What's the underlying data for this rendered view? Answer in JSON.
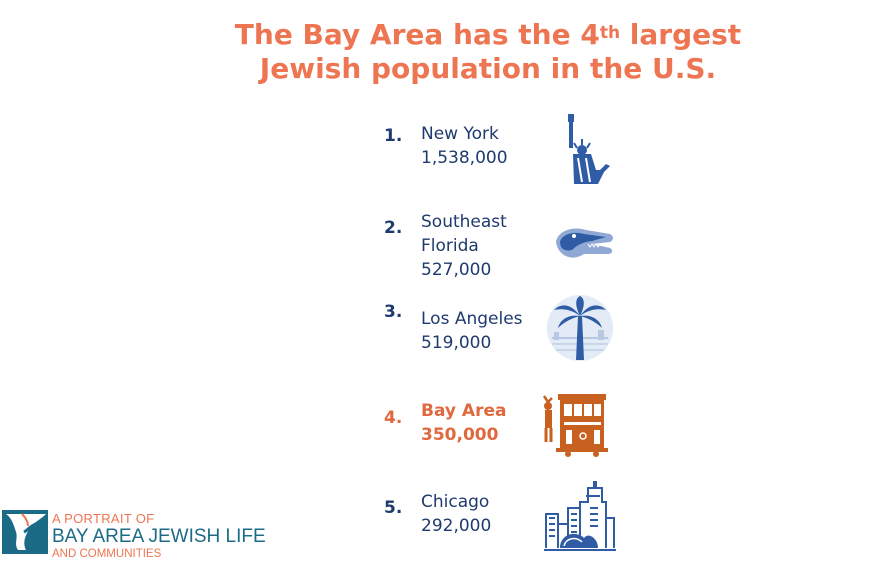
{
  "title": {
    "line1_pre": "The Bay Area has the 4",
    "line1_sup": "th",
    "line1_post": " largest",
    "line2": "Jewish population in the U.S."
  },
  "rankings": [
    {
      "rank": "1.",
      "name": "New York",
      "value": "1,538,000",
      "icon": "statue-of-liberty-icon"
    },
    {
      "rank": "2.",
      "name_line1": "Southeast",
      "name_line2": "Florida",
      "value": "527,000",
      "icon": "alligator-icon"
    },
    {
      "rank": "3.",
      "name": "Los Angeles",
      "value": "519,000",
      "icon": "palm-tree-icon"
    },
    {
      "rank": "4.",
      "name": "Bay Area",
      "value": "350,000",
      "icon": "cable-car-icon"
    },
    {
      "rank": "5.",
      "name": "Chicago",
      "value": "292,000",
      "icon": "city-skyline-icon"
    }
  ],
  "logo": {
    "line1": "A PORTRAIT OF",
    "line2": "BAY AREA JEWISH LIFE",
    "line3": "AND COMMUNITIES",
    "icon": "bay-area-map-icon"
  },
  "colors": {
    "accent": "#ee7552",
    "navy": "#1f3a6e",
    "icon_blue": "#2f5ca5",
    "icon_orange": "#c8601f",
    "teal": "#1b6b86"
  }
}
